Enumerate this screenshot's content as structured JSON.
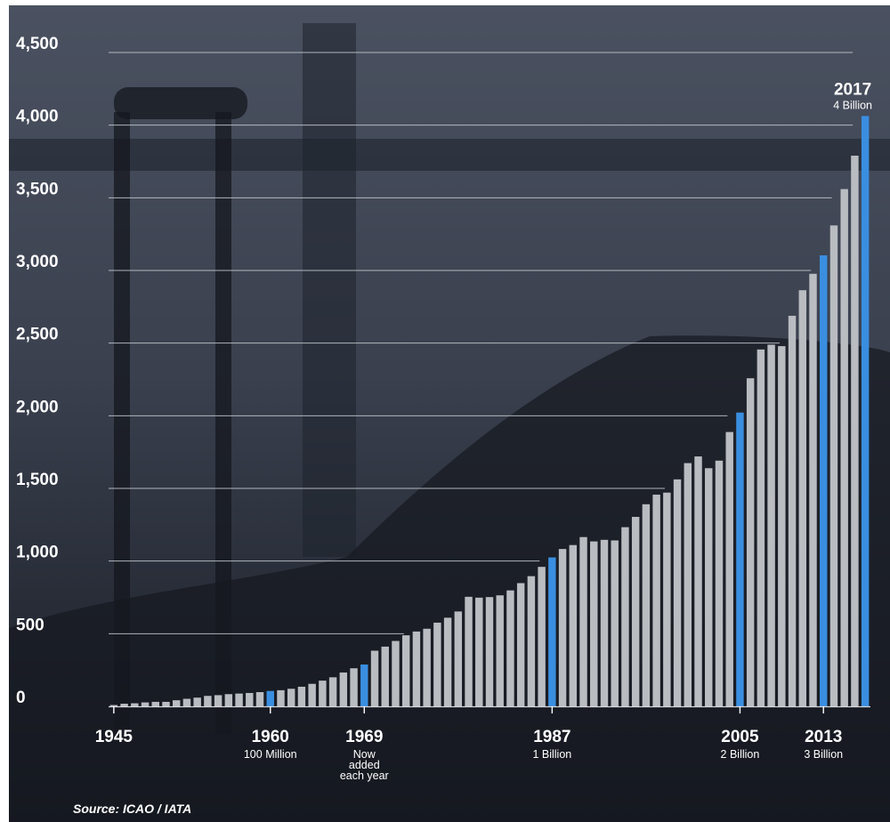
{
  "chart_data": {
    "type": "bar",
    "title": "",
    "xlabel": "",
    "ylabel": "",
    "ylim": [
      0,
      4500
    ],
    "y_ticks": [
      "0",
      "500",
      "1,000",
      "1,500",
      "2,000",
      "2,500",
      "3,000",
      "3,500",
      "4,000",
      "4,500"
    ],
    "y_tick_values": [
      0,
      500,
      1000,
      1500,
      2000,
      2500,
      3000,
      3500,
      4000,
      4500
    ],
    "grid": true,
    "colors": {
      "bar": "#b9bcc0",
      "highlight": "#3a8ee0",
      "background": "#2b3140",
      "gridline": "#c9ccd2",
      "text": "#ffffff"
    },
    "x": [
      1945,
      1946,
      1947,
      1948,
      1949,
      1950,
      1951,
      1952,
      1953,
      1954,
      1955,
      1956,
      1957,
      1958,
      1959,
      1960,
      1961,
      1962,
      1963,
      1964,
      1965,
      1966,
      1967,
      1968,
      1969,
      1970,
      1971,
      1972,
      1973,
      1974,
      1975,
      1976,
      1977,
      1978,
      1979,
      1980,
      1981,
      1982,
      1983,
      1984,
      1985,
      1986,
      1987,
      1988,
      1989,
      1990,
      1991,
      1992,
      1993,
      1994,
      1995,
      1996,
      1997,
      1998,
      1999,
      2000,
      2001,
      2002,
      2003,
      2004,
      2005,
      2006,
      2007,
      2008,
      2009,
      2010,
      2011,
      2012,
      2013,
      2014,
      2015,
      2016,
      2017
    ],
    "values": [
      9,
      18,
      21,
      27,
      31,
      31,
      42,
      52,
      60,
      72,
      77,
      84,
      88,
      92,
      98,
      106,
      111,
      121,
      135,
      155,
      177,
      200,
      233,
      262,
      288,
      383,
      411,
      450,
      489,
      515,
      534,
      576,
      610,
      653,
      754,
      748,
      752,
      764,
      798,
      848,
      896,
      960,
      1025,
      1083,
      1110,
      1165,
      1135,
      1146,
      1142,
      1233,
      1304,
      1391,
      1457,
      1471,
      1562,
      1674,
      1720,
      1639,
      1691,
      1888,
      2022,
      2258,
      2456,
      2489,
      2479,
      2688,
      2864,
      2977,
      3104,
      3310,
      3560,
      3790,
      4063
    ],
    "highlight_years": [
      1960,
      1969,
      1987,
      2005,
      2013,
      2017
    ],
    "x_labels": [
      {
        "year": 1945,
        "label": "1945",
        "sub": []
      },
      {
        "year": 1960,
        "label": "1960",
        "sub": [
          "100 Million"
        ]
      },
      {
        "year": 1969,
        "label": "1969",
        "sub": [
          "Now",
          "added",
          "each year"
        ]
      },
      {
        "year": 1987,
        "label": "1987",
        "sub": [
          "1 Billion"
        ]
      },
      {
        "year": 2005,
        "label": "2005",
        "sub": [
          "2 Billion"
        ]
      },
      {
        "year": 2013,
        "label": "2013",
        "sub": [
          "3 Billion"
        ]
      }
    ],
    "top_annotation": {
      "year": 2017,
      "label": "2017",
      "sub": "4 Billion"
    },
    "source": "Source: ICAO / IATA"
  }
}
